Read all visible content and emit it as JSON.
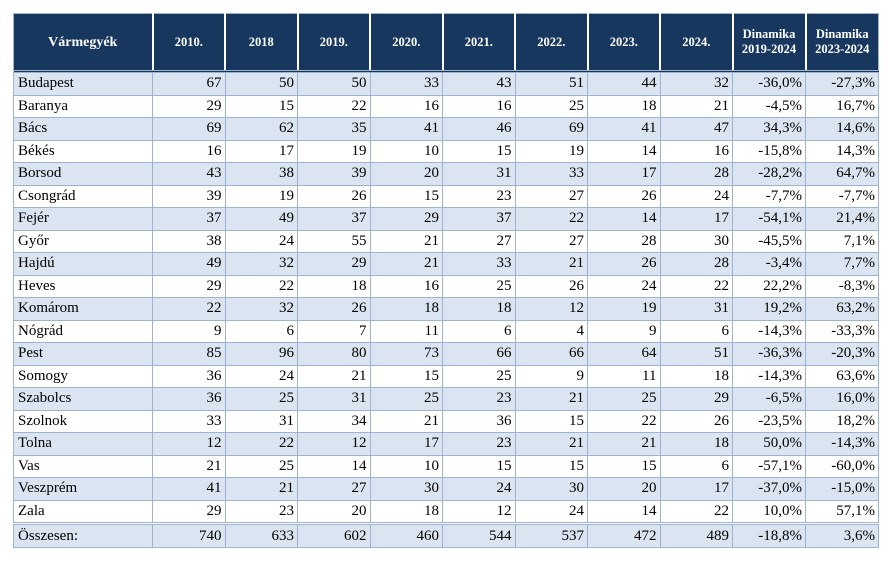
{
  "table": {
    "headers": [
      "Vármegyék",
      "2010.",
      "2018",
      "2019.",
      "2020.",
      "2021.",
      "2022.",
      "2023.",
      "2024.",
      [
        "Dinamika",
        "2019-2024"
      ],
      [
        "Dinamika",
        "2023-2024"
      ]
    ],
    "rows": [
      [
        "Budapest",
        "67",
        "50",
        "50",
        "33",
        "43",
        "51",
        "44",
        "32",
        "-36,0%",
        "-27,3%"
      ],
      [
        "Baranya",
        "29",
        "15",
        "22",
        "16",
        "16",
        "25",
        "18",
        "21",
        "-4,5%",
        "16,7%"
      ],
      [
        "Bács",
        "69",
        "62",
        "35",
        "41",
        "46",
        "69",
        "41",
        "47",
        "34,3%",
        "14,6%"
      ],
      [
        "Békés",
        "16",
        "17",
        "19",
        "10",
        "15",
        "19",
        "14",
        "16",
        "-15,8%",
        "14,3%"
      ],
      [
        "Borsod",
        "43",
        "38",
        "39",
        "20",
        "31",
        "33",
        "17",
        "28",
        "-28,2%",
        "64,7%"
      ],
      [
        "Csongrád",
        "39",
        "19",
        "26",
        "15",
        "23",
        "27",
        "26",
        "24",
        "-7,7%",
        "-7,7%"
      ],
      [
        "Fejér",
        "37",
        "49",
        "37",
        "29",
        "37",
        "22",
        "14",
        "17",
        "-54,1%",
        "21,4%"
      ],
      [
        "Győr",
        "38",
        "24",
        "55",
        "21",
        "27",
        "27",
        "28",
        "30",
        "-45,5%",
        "7,1%"
      ],
      [
        "Hajdú",
        "49",
        "32",
        "29",
        "21",
        "33",
        "21",
        "26",
        "28",
        "-3,4%",
        "7,7%"
      ],
      [
        "Heves",
        "29",
        "22",
        "18",
        "16",
        "25",
        "26",
        "24",
        "22",
        "22,2%",
        "-8,3%"
      ],
      [
        "Komárom",
        "22",
        "32",
        "26",
        "18",
        "18",
        "12",
        "19",
        "31",
        "19,2%",
        "63,2%"
      ],
      [
        "Nógrád",
        "9",
        "6",
        "7",
        "11",
        "6",
        "4",
        "9",
        "6",
        "-14,3%",
        "-33,3%"
      ],
      [
        "Pest",
        "85",
        "96",
        "80",
        "73",
        "66",
        "66",
        "64",
        "51",
        "-36,3%",
        "-20,3%"
      ],
      [
        "Somogy",
        "36",
        "24",
        "21",
        "15",
        "25",
        "9",
        "11",
        "18",
        "-14,3%",
        "63,6%"
      ],
      [
        "Szabolcs",
        "36",
        "25",
        "31",
        "25",
        "23",
        "21",
        "25",
        "29",
        "-6,5%",
        "16,0%"
      ],
      [
        "Szolnok",
        "33",
        "31",
        "34",
        "21",
        "36",
        "15",
        "22",
        "26",
        "-23,5%",
        "18,2%"
      ],
      [
        "Tolna",
        "12",
        "22",
        "12",
        "17",
        "23",
        "21",
        "21",
        "18",
        "50,0%",
        "-14,3%"
      ],
      [
        "Vas",
        "21",
        "25",
        "14",
        "10",
        "15",
        "15",
        "15",
        "6",
        "-57,1%",
        "-60,0%"
      ],
      [
        "Veszprém",
        "41",
        "21",
        "27",
        "30",
        "24",
        "30",
        "20",
        "17",
        "-37,0%",
        "-15,0%"
      ],
      [
        "Zala",
        "29",
        "23",
        "20",
        "18",
        "12",
        "24",
        "14",
        "22",
        "10,0%",
        "57,1%"
      ]
    ],
    "total": [
      "Összesen:",
      "740",
      "633",
      "602",
      "460",
      "544",
      "537",
      "472",
      "489",
      "-18,8%",
      "3,6%"
    ]
  },
  "colors": {
    "header_bg": "#17375e",
    "stripe": "#dbe5f1",
    "border": "#9db3cf"
  }
}
